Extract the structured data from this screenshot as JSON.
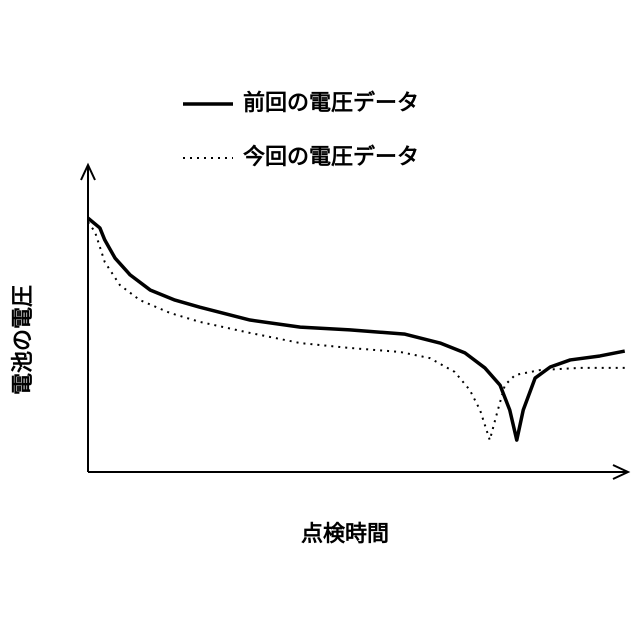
{
  "chart_data": {
    "type": "line",
    "xlabel": "点検時間",
    "ylabel": "電池の電圧",
    "xlim": [
      0,
      100
    ],
    "ylim": [
      0,
      100
    ],
    "legend": "top",
    "series": [
      {
        "name": "前回の電圧データ",
        "color": "#000000",
        "style": "solid",
        "x": [
          0,
          2.2,
          3.1,
          5.0,
          7.8,
          11.5,
          16.1,
          20.7,
          30.0,
          39.3,
          48.5,
          58.7,
          65.2,
          69.8,
          73.5,
          76.3,
          78.1,
          79.4,
          80.6,
          82.8,
          85.6,
          89.3,
          94.8,
          99.4
        ],
        "values": [
          82.7,
          79.5,
          75.6,
          69.7,
          64.2,
          59.3,
          56.0,
          53.7,
          49.5,
          47.2,
          46.3,
          44.9,
          42.0,
          38.8,
          33.9,
          28.3,
          20.2,
          10.4,
          20.2,
          30.6,
          34.2,
          36.5,
          37.8,
          39.4
        ]
      },
      {
        "name": "今回の電圧データ",
        "color": "#000000",
        "style": "dotted",
        "x": [
          0,
          1.3,
          3.1,
          5.9,
          9.6,
          15.2,
          20.7,
          30.0,
          39.3,
          48.5,
          57.8,
          63.3,
          67.9,
          70.7,
          72.6,
          74.4,
          75.9,
          77.2,
          79.1,
          83.7,
          91.1,
          99.4
        ],
        "values": [
          81.4,
          78.2,
          68.4,
          60.9,
          56.0,
          51.8,
          48.9,
          45.3,
          42.0,
          40.4,
          39.1,
          37.1,
          32.6,
          26.7,
          20.2,
          10.4,
          20.2,
          28.3,
          31.6,
          33.2,
          33.9,
          33.9
        ]
      }
    ]
  }
}
